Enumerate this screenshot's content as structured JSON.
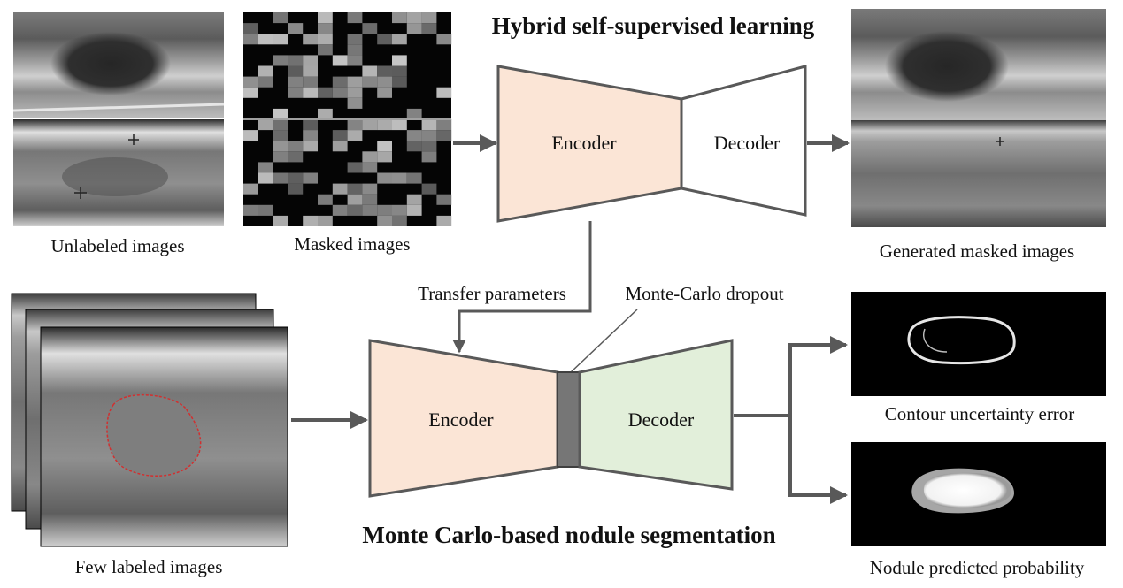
{
  "titles": {
    "top": "Hybrid self-supervised learning",
    "bottom": "Monte Carlo-based nodule segmentation"
  },
  "images": {
    "unlabeled": "Unlabeled images",
    "masked": "Masked images",
    "generated": "Generated masked images",
    "few_labeled": "Few labeled images",
    "contour_error": "Contour uncertainty error",
    "predicted_prob": "Nodule predicted probability"
  },
  "blocks": {
    "top_encoder": "Encoder",
    "top_decoder": "Decoder",
    "bottom_encoder": "Encoder",
    "bottom_decoder": "Decoder"
  },
  "annotations": {
    "transfer": "Transfer parameters",
    "dropout": "Monte-Carlo dropout"
  },
  "colors": {
    "encoder_fill": "#fbe5d6",
    "decoder_fill_bottom": "#e2efda",
    "decoder_fill_top": "#ffffff",
    "dropout_fill": "#767676",
    "stroke": "#595959",
    "arrow": "#595959",
    "segmentation_contour": "#d22f2f"
  }
}
